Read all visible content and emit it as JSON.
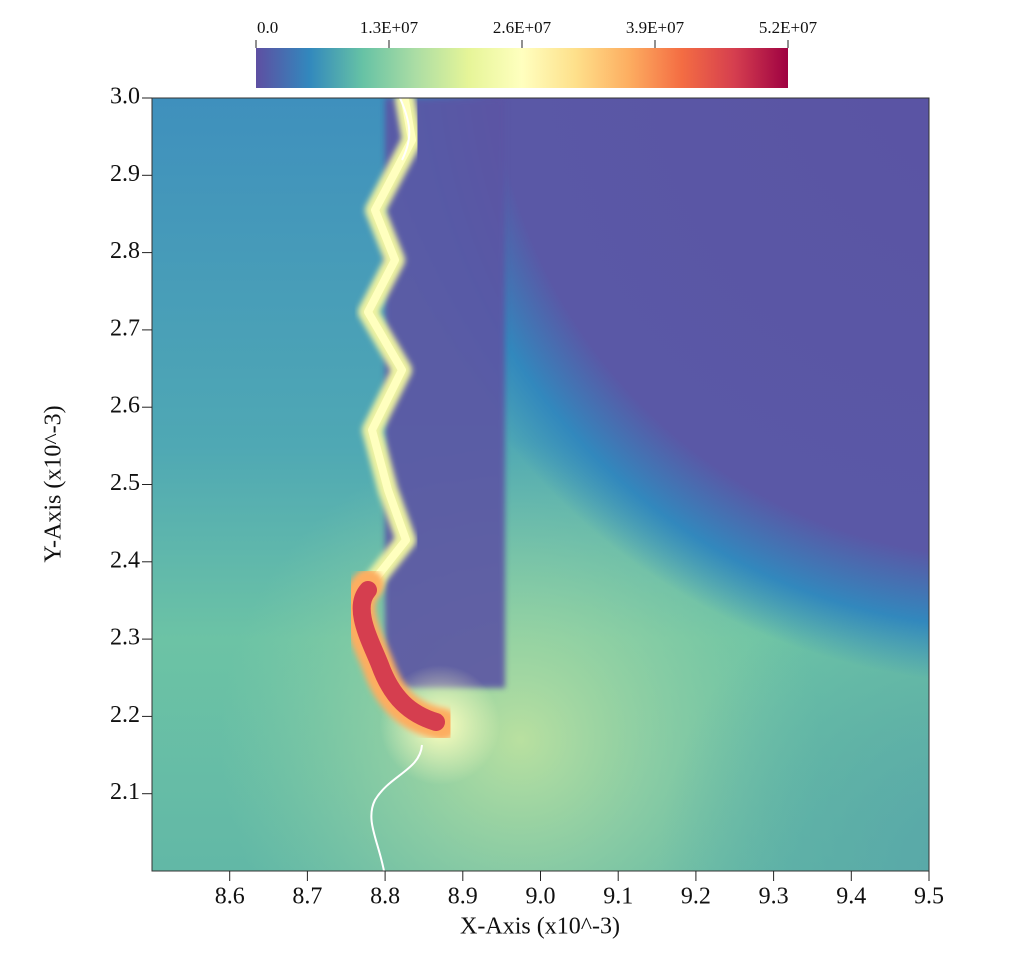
{
  "chart_data": {
    "type": "field",
    "xlabel": "X-Axis (x10^-3)",
    "ylabel": "Y-Axis (x10^-3)",
    "xlim": [
      8.5,
      9.5
    ],
    "ylim": [
      2.0,
      3.0
    ],
    "xticks": [
      8.6,
      8.7,
      8.8,
      8.9,
      {
        "value": 9,
        "label": "9.0"
      },
      9.1,
      9.2,
      9.3,
      9.4,
      9.5
    ],
    "yticks": [
      2.1,
      2.2,
      2.3,
      2.4,
      2.5,
      2.6,
      2.7,
      2.8,
      2.9,
      {
        "value": 3,
        "label": "3.0"
      }
    ],
    "colorbar": {
      "lim": [
        0,
        52000000
      ],
      "ticks": [
        {
          "value": 0,
          "label": "0.0"
        },
        {
          "value": 13000000,
          "label": "1.3E+07"
        },
        {
          "value": 26000000,
          "label": "2.6E+07"
        },
        {
          "value": 39000000,
          "label": "3.9E+07"
        },
        {
          "value": 52000000,
          "label": "5.2E+07"
        }
      ],
      "colormap": [
        "#5e4fa2",
        "#3288bd",
        "#66c2a5",
        "#abdda4",
        "#e6f598",
        "#ffffbf",
        "#fee08b",
        "#fdae61",
        "#f46d43",
        "#d53e4f",
        "#9e0142"
      ]
    }
  }
}
